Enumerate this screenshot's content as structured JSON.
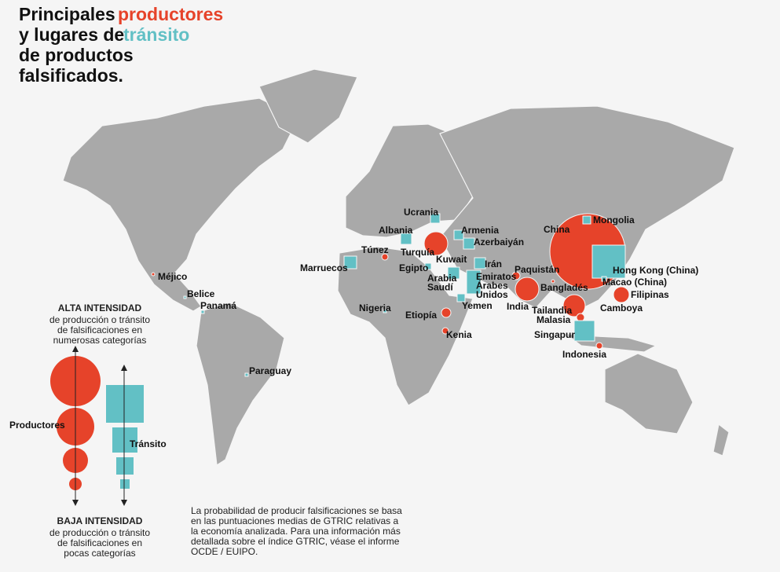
{
  "title_lines": [
    "Principales",
    "productores",
    "y lugares de",
    "tránsito",
    "de productos",
    "falsificados."
  ],
  "colors": {
    "producer": "#e6432a",
    "transit": "#62c0c5",
    "land": "#a9a9a9"
  },
  "labels": [
    [
      "Ucrania"
    ],
    [
      "Mongolia"
    ],
    [
      "China"
    ],
    [
      "Albania"
    ],
    [
      "Armenia"
    ],
    [
      "Azerbaiyán"
    ],
    [
      "Túnez"
    ],
    [
      "Turquía"
    ],
    [
      "Kuwait"
    ],
    [
      "Irán"
    ],
    [
      "Marruecos"
    ],
    [
      "Egipto"
    ],
    [
      "Hong Kong (China)"
    ],
    [
      "Paquistán"
    ],
    [
      "Arabia",
      "Saudí"
    ],
    [
      "Emiratos",
      "Árabes",
      "Unidos"
    ],
    [
      "Méjico"
    ],
    [
      "Macao (China)"
    ],
    [
      "Bangladés"
    ],
    [
      "Belice"
    ],
    [
      "Filipinas"
    ],
    [
      "India"
    ],
    [
      "Panamá"
    ],
    [
      "Yemen"
    ],
    [
      "Nigeria"
    ],
    [
      "Camboya"
    ],
    [
      "Tailandia"
    ],
    [
      "Etiopía"
    ],
    [
      "Malasia"
    ],
    [
      "Kenia"
    ],
    [
      "Singapur"
    ],
    [
      "Indonesia"
    ],
    [
      "Paraguay"
    ]
  ],
  "legend": {
    "high_title": "ALTA INTENSIDAD",
    "high_text": [
      "de producción o tránsito",
      "de falsificaciones en",
      "numerosas categorías"
    ],
    "producers": "Productores",
    "transit": "Tránsito",
    "low_title": "BAJA INTENSIDAD",
    "low_text": [
      "de producción o tránsito",
      "de falsificaciones en",
      "pocas categorías"
    ]
  },
  "note": [
    "La probabilidad de producir falsificaciones se basa",
    "en las puntuaciones medias de GTRIC relativas a",
    "la economía analizada. Para una información más",
    "detallada sobre el índice GTRIC, véase el informe",
    "OCDE / EUIPO."
  ]
}
